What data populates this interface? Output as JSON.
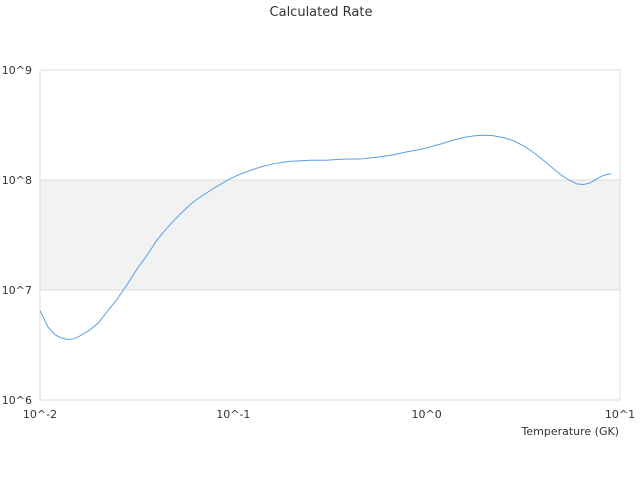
{
  "chart_data": {
    "type": "line",
    "title": "Calculated Rate",
    "xlabel": "Temperature (GK)",
    "ylabel": "",
    "x_scale": "log",
    "y_scale": "log",
    "xlim": [
      0.01,
      10
    ],
    "ylim": [
      1000000,
      1000000000
    ],
    "x_ticks": [
      {
        "value": 0.01,
        "label": "10^-2"
      },
      {
        "value": 0.1,
        "label": "10^-1"
      },
      {
        "value": 1,
        "label": "10^0"
      },
      {
        "value": 10,
        "label": "10^1"
      }
    ],
    "y_ticks": [
      {
        "value": 1000000,
        "label": "10^6"
      },
      {
        "value": 10000000,
        "label": "10^7"
      },
      {
        "value": 100000000,
        "label": "10^8"
      },
      {
        "value": 1000000000,
        "label": "10^9"
      }
    ],
    "grid": true,
    "legend": "none",
    "colors": {
      "line": "#5aa0e6",
      "band": "#f2f2f2",
      "grid": "#dddddd",
      "text": "#333333"
    },
    "series": [
      {
        "x": [
          0.01,
          0.011,
          0.012,
          0.013,
          0.014,
          0.015,
          0.016,
          0.018,
          0.02,
          0.022,
          0.025,
          0.028,
          0.032,
          0.036,
          0.04,
          0.045,
          0.05,
          0.055,
          0.06,
          0.065,
          0.07,
          0.08,
          0.09,
          0.1,
          0.11,
          0.125,
          0.14,
          0.16,
          0.18,
          0.2,
          0.25,
          0.3,
          0.35,
          0.4,
          0.45,
          0.5,
          0.6,
          0.7,
          0.8,
          0.9,
          1.0,
          1.2,
          1.4,
          1.6,
          1.8,
          2.0,
          2.2,
          2.5,
          2.8,
          3.2,
          3.6,
          4.0,
          4.5,
          5.0,
          5.5,
          6.0,
          6.5,
          7.0,
          7.5,
          8.0,
          8.5,
          9.0
        ],
        "y": [
          6500000,
          4600000,
          3900000,
          3650000,
          3550000,
          3600000,
          3800000,
          4300000,
          5000000,
          6200000,
          8200000,
          11000000,
          15800000,
          21000000,
          28000000,
          36000000,
          44000000,
          52000000,
          60000000,
          67000000,
          73000000,
          85000000,
          96000000,
          106000000,
          114000000,
          124000000,
          132000000,
          140000000,
          145000000,
          148000000,
          151000000,
          151000000,
          154000000,
          155000000,
          155000000,
          158000000,
          164000000,
          172000000,
          181000000,
          188000000,
          196000000,
          214000000,
          233000000,
          246000000,
          253000000,
          255000000,
          253000000,
          243000000,
          228000000,
          203000000,
          176000000,
          152000000,
          128000000,
          110000000,
          99000000,
          92000000,
          91000000,
          94000000,
          101000000,
          108000000,
          112000000,
          114000000
        ]
      }
    ]
  }
}
